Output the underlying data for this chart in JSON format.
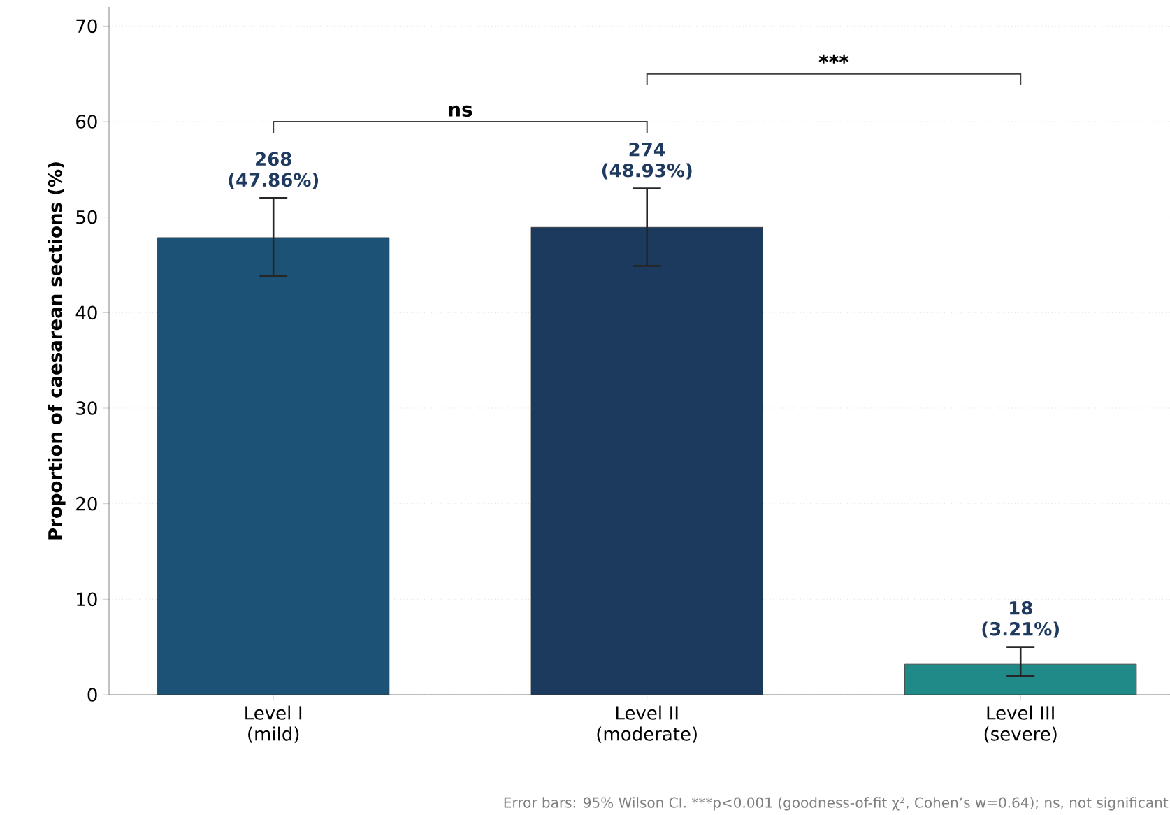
{
  "chart_data": {
    "type": "bar",
    "categories": [
      "Level I (mild)",
      "Level II (moderate)",
      "Level III (severe)"
    ],
    "values": [
      47.86,
      48.93,
      3.21
    ],
    "colors": [
      "#1d5277",
      "#1c3a5e",
      "#1f8a87"
    ],
    "errors": [
      [
        43.8,
        52.0
      ],
      [
        44.9,
        53.0
      ],
      [
        2.0,
        5.0
      ]
    ],
    "value_labels": [
      "268 (47.86%)",
      "274 (48.93%)",
      "18 (3.21%)"
    ],
    "ylabel": "Proportion of caesarean sections (%)",
    "ylim": [
      0,
      72
    ],
    "yticks": [
      0,
      10,
      20,
      30,
      40,
      50,
      60,
      70
    ],
    "grid": "y",
    "annotations": [
      "ns",
      "***",
      "Error bars: 95% Wilson CI. ***p<0.001 (goodness-of-fit χ², Cohen’s w=0.64); ns, not significant"
    ]
  }
}
